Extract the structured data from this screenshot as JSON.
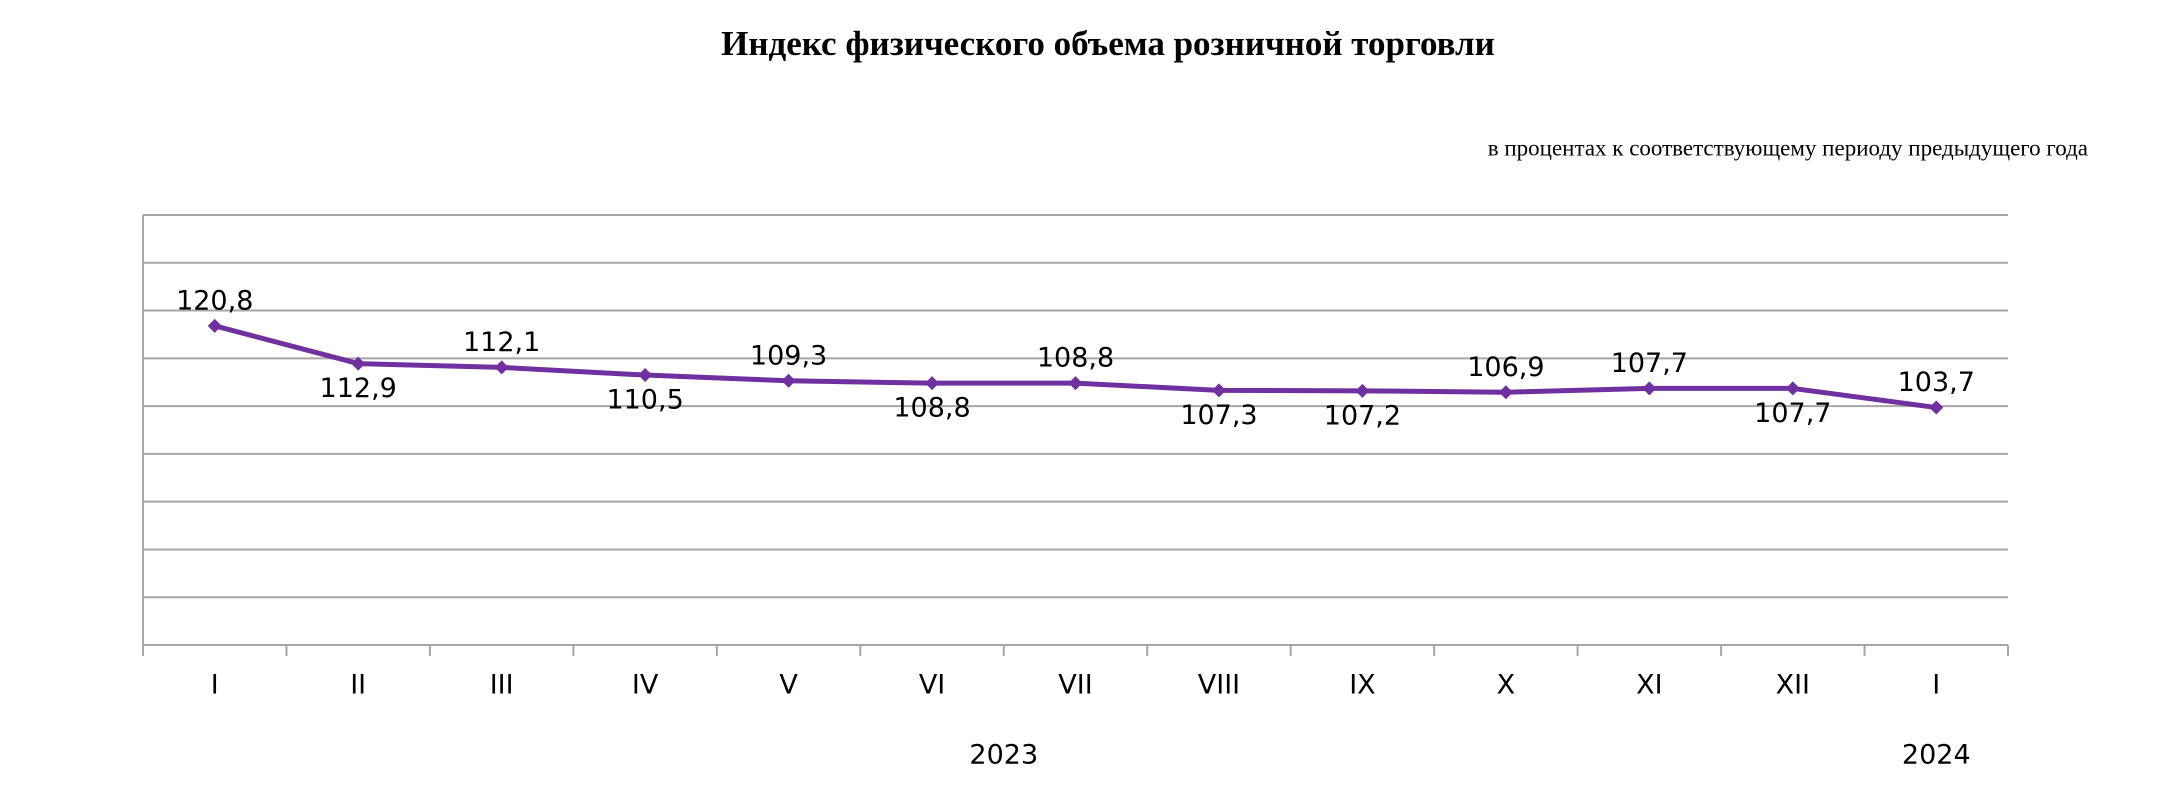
{
  "chart_data": {
    "type": "line",
    "title": "Индекс физического объема розничной торговли",
    "subtitle": "в процентах к соответствующему периоду предыдущего года",
    "groups": [
      {
        "label": "2023",
        "categories": [
          "I",
          "II",
          "III",
          "IV",
          "V",
          "VI",
          "VII",
          "VIII",
          "IX",
          "X",
          "XI",
          "XII"
        ]
      },
      {
        "label": "2024",
        "categories": [
          "I"
        ]
      }
    ],
    "values": [
      120.8,
      112.9,
      112.1,
      110.5,
      109.3,
      108.8,
      108.8,
      107.3,
      107.2,
      106.9,
      107.7,
      107.7,
      103.7
    ],
    "value_labels": [
      "120,8",
      "112,9",
      "112,1",
      "110,5",
      "109,3",
      "108,8",
      "108,8",
      "107,3",
      "107,2",
      "106,9",
      "107,7",
      "107,7",
      "103,7"
    ],
    "label_positions": [
      "above",
      "below",
      "above",
      "below",
      "above",
      "below",
      "above",
      "below",
      "below",
      "above",
      "above",
      "below",
      "above"
    ],
    "color": "#7030a0",
    "ylim": [
      54,
      144
    ],
    "yticks": [
      54,
      64,
      74,
      84,
      94,
      104,
      114,
      124,
      134,
      144
    ],
    "grid": true
  }
}
